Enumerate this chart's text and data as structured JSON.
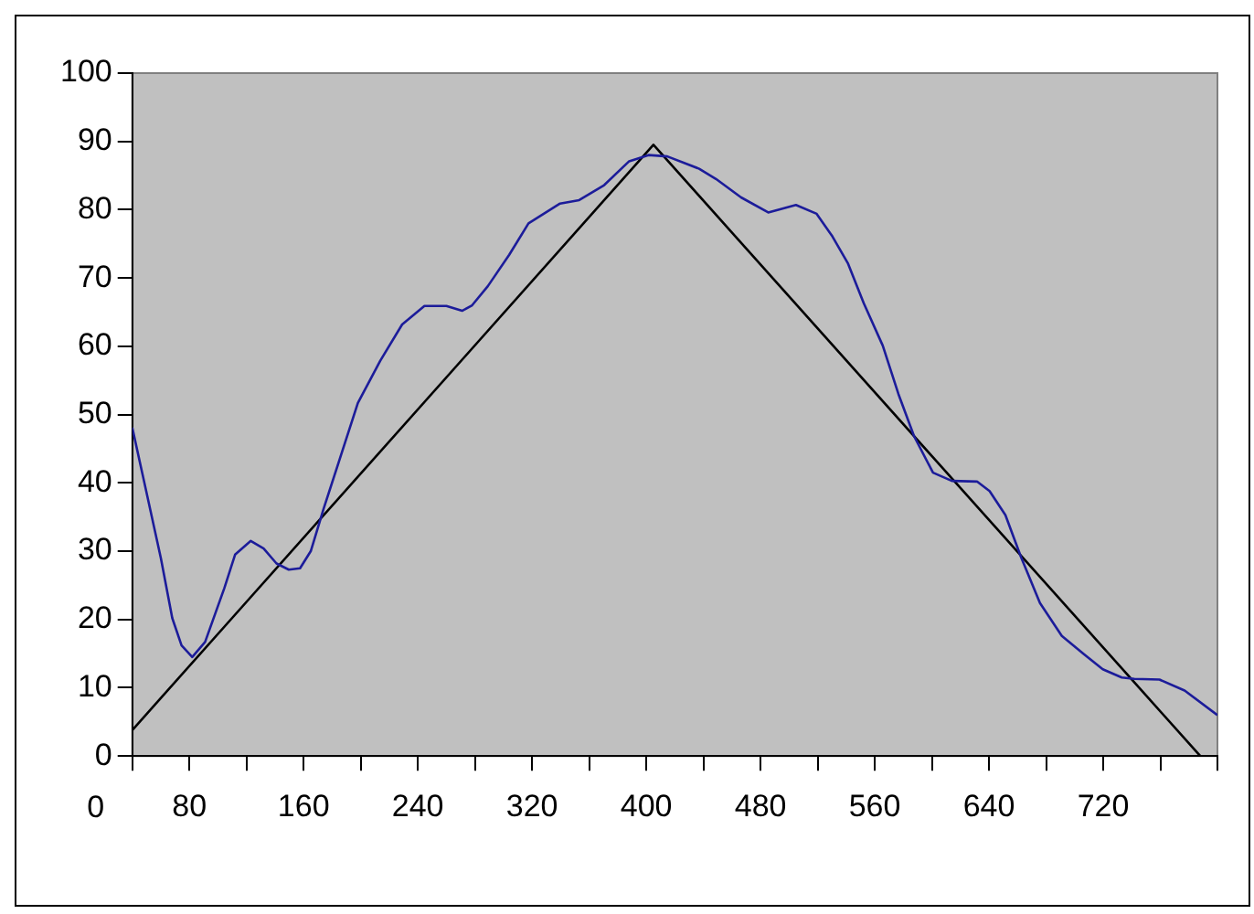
{
  "chart_data": {
    "type": "line",
    "xlim": [
      40,
      800
    ],
    "xticks": [
      {
        "value": 40,
        "label": null
      },
      80,
      {
        "value": 120,
        "label": null
      },
      160,
      {
        "value": 200,
        "label": null
      },
      240,
      {
        "value": 280,
        "label": null
      },
      320,
      {
        "value": 360,
        "label": null
      },
      400,
      {
        "value": 440,
        "label": null
      },
      480,
      {
        "value": 520,
        "label": null
      },
      560,
      {
        "value": 600,
        "label": null
      },
      640,
      {
        "value": 680,
        "label": null
      },
      720,
      {
        "value": 760,
        "label": null
      },
      {
        "value": 800,
        "label": null
      }
    ],
    "ylim": [
      0,
      100
    ],
    "yticks": [
      0,
      10,
      20,
      30,
      40,
      50,
      60,
      70,
      80,
      90,
      100
    ],
    "grid": false,
    "legend": false,
    "marker": "none",
    "annotations": [
      "0"
    ],
    "series": [
      {
        "color": "#1c1c9a",
        "x": [
          40,
          48.8,
          60,
          68,
          74.5,
          82,
          91,
          104.5,
          112,
          123,
          132,
          141,
          149.6,
          157.5,
          165,
          174,
          185,
          198,
          213.7,
          229,
          244.6,
          260,
          271,
          278,
          289,
          304,
          317.5,
          339.6,
          353,
          370.5,
          388,
          401.5,
          414.7,
          437,
          448.8,
          466.4,
          485.4,
          504.8,
          519.3,
          530.3,
          541.3,
          552.3,
          565.6,
          576.6,
          587.6,
          600.8,
          614,
          631.6,
          640.4,
          651.5,
          662.5,
          675.7,
          691,
          706.5,
          719.7,
          733,
          741.8,
          759.4,
          777,
          800
        ],
        "values": [
          48.1,
          39.7,
          29,
          20.2,
          16.2,
          14.5,
          16.7,
          24.6,
          29.5,
          31.5,
          30.4,
          28.2,
          27.3,
          27.5,
          30,
          36.2,
          43.3,
          51.7,
          57.9,
          63.2,
          65.9,
          65.9,
          65.2,
          66,
          68.8,
          73.4,
          78,
          80.9,
          81.4,
          83.6,
          87.1,
          88,
          87.8,
          86,
          84.5,
          81.8,
          79.6,
          80.7,
          79.4,
          76.1,
          72.1,
          66.3,
          60.1,
          53,
          46.8,
          41.5,
          40.3,
          40.2,
          38.8,
          35.3,
          29.1,
          22.4,
          17.6,
          14.9,
          12.7,
          11.5,
          11.3,
          11.2,
          9.6,
          6
        ]
      },
      {
        "color": "#000000",
        "x": [
          40,
          405,
          788
        ],
        "values": [
          3.8,
          89.5,
          0
        ]
      }
    ]
  }
}
